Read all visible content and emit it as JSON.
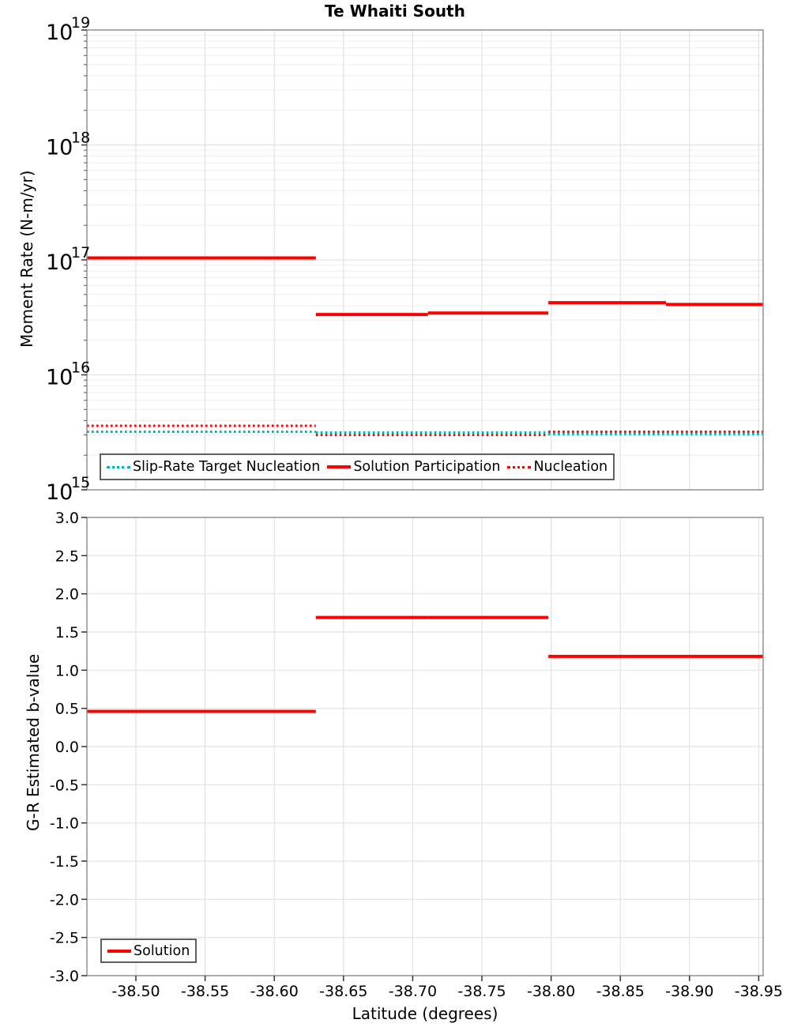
{
  "figure": {
    "title": "Te Whaiti South",
    "xlabel": "Latitude (degrees)"
  },
  "chart_data": [
    {
      "type": "line",
      "subplot": "moment-rate",
      "title": "Te Whaiti South",
      "ylabel": "Moment Rate (N-m/yr)",
      "yscale": "log",
      "ylim": [
        1000000000000000.0,
        1e+19
      ],
      "ytick_exponents": [
        19,
        18,
        17,
        16,
        15
      ],
      "xlim_left": -38.4646,
      "xlim_right": -38.9532,
      "xticks": [
        -38.5,
        -38.55,
        -38.6,
        -38.65,
        -38.7,
        -38.75,
        -38.8,
        -38.85,
        -38.9,
        -38.95
      ],
      "xtick_labels": [
        "-38.50",
        "-38.55",
        "-38.60",
        "-38.65",
        "-38.70",
        "-38.75",
        "-38.80",
        "-38.85",
        "-38.90",
        "-38.95"
      ],
      "grid": true,
      "legend_position": "lower left",
      "series": [
        {
          "name": "Slip-Rate Target Nucleation",
          "color": "#00b4b4",
          "line_style": "dotted",
          "line_width": 3,
          "steps": [
            {
              "x_start": -38.4646,
              "x_end": -38.63,
              "y": 3200000000000000.0
            },
            {
              "x_start": -38.63,
              "x_end": -38.798,
              "y": 3150000000000000.0
            },
            {
              "x_start": -38.798,
              "x_end": -38.9532,
              "y": 3050000000000000.0
            }
          ]
        },
        {
          "name": "Solution Participation",
          "color": "#ff0000",
          "line_style": "solid",
          "line_width": 4,
          "steps": [
            {
              "x_start": -38.4646,
              "x_end": -38.63,
              "y": 1.04e+17
            },
            {
              "x_start": -38.63,
              "x_end": -38.711,
              "y": 3.35e+16
            },
            {
              "x_start": -38.711,
              "x_end": -38.798,
              "y": 3.45e+16
            },
            {
              "x_start": -38.798,
              "x_end": -38.883,
              "y": 4.25e+16
            },
            {
              "x_start": -38.883,
              "x_end": -38.9532,
              "y": 4.1e+16
            }
          ]
        },
        {
          "name": "Nucleation",
          "color": "#ff0000",
          "line_style": "dotted",
          "line_width": 3,
          "steps": [
            {
              "x_start": -38.4646,
              "x_end": -38.63,
              "y": 3600000000000000.0
            },
            {
              "x_start": -38.63,
              "x_end": -38.798,
              "y": 3000000000000000.0
            },
            {
              "x_start": -38.798,
              "x_end": -38.9532,
              "y": 3200000000000000.0
            }
          ]
        }
      ]
    },
    {
      "type": "line",
      "subplot": "gr-b-value",
      "ylabel": "G-R Estimated b-value",
      "xlabel": "Latitude (degrees)",
      "yscale": "linear",
      "ylim": [
        -3.0,
        3.0
      ],
      "yticks": [
        3.0,
        2.5,
        2.0,
        1.5,
        1.0,
        0.5,
        0.0,
        -0.5,
        -1.0,
        -1.5,
        -2.0,
        -2.5,
        -3.0
      ],
      "ytick_labels": [
        "3.0",
        "2.5",
        "2.0",
        "1.5",
        "1.0",
        "0.5",
        "0.0",
        "-0.5",
        "-1.0",
        "-1.5",
        "-2.0",
        "-2.5",
        "-3.0"
      ],
      "xlim_left": -38.4646,
      "xlim_right": -38.9532,
      "xticks": [
        -38.5,
        -38.55,
        -38.6,
        -38.65,
        -38.7,
        -38.75,
        -38.8,
        -38.85,
        -38.9,
        -38.95
      ],
      "xtick_labels": [
        "-38.50",
        "-38.55",
        "-38.60",
        "-38.65",
        "-38.70",
        "-38.75",
        "-38.80",
        "-38.85",
        "-38.90",
        "-38.95"
      ],
      "grid": true,
      "legend_position": "lower left",
      "series": [
        {
          "name": "Solution",
          "color": "#ff0000",
          "line_style": "solid",
          "line_width": 4,
          "steps": [
            {
              "x_start": -38.4646,
              "x_end": -38.63,
              "y": 0.46
            },
            {
              "x_start": -38.63,
              "x_end": -38.711,
              "y": 1.69
            },
            {
              "x_start": -38.711,
              "x_end": -38.798,
              "y": 1.69
            },
            {
              "x_start": -38.798,
              "x_end": -38.883,
              "y": 1.18
            },
            {
              "x_start": -38.883,
              "x_end": -38.9532,
              "y": 1.18
            }
          ]
        }
      ]
    }
  ],
  "colors": {
    "solution_red": "#ff0000",
    "target_cyan": "#00b4b4",
    "spine_gray": "#8c8c8c",
    "grid_major": "#e2e2e2",
    "grid_minor": "#eeeeee"
  }
}
